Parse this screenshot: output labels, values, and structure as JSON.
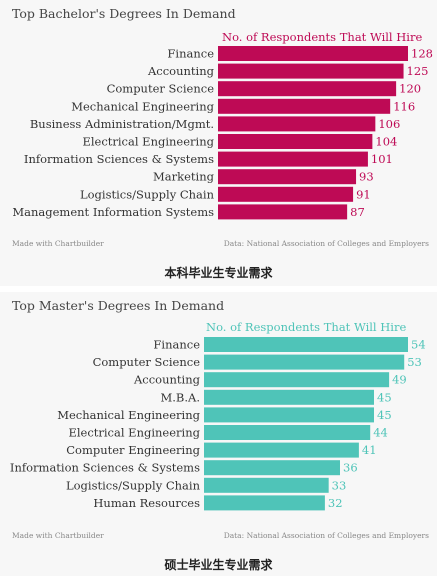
{
  "chart_data": [
    {
      "type": "bar",
      "orientation": "horizontal",
      "title": "Top Bachelor's Degrees In Demand",
      "legend": "No. of Respondents That Will Hire",
      "categories": [
        "Finance",
        "Accounting",
        "Computer Science",
        "Mechanical Engineering",
        "Business Administration/Mgmt.",
        "Electrical Engineering",
        "Information Sciences & Systems",
        "Marketing",
        "Logistics/Supply Chain",
        "Management Information Systems"
      ],
      "values": [
        128,
        125,
        120,
        116,
        106,
        104,
        101,
        93,
        91,
        87
      ],
      "color": "#be0a55",
      "footer_left": "Made with Chartbuilder",
      "footer_right": "Data: National Association of Colleges and Employers",
      "caption": "本科毕业生专业需求"
    },
    {
      "type": "bar",
      "orientation": "horizontal",
      "title": "Top Master's Degrees In Demand",
      "legend": "No. of Respondents That Will Hire",
      "categories": [
        "Finance",
        "Computer Science",
        "Accounting",
        "M.B.A.",
        "Mechanical Engineering",
        "Electrical Engineering",
        "Computer Engineering",
        "Information Sciences & Systems",
        "Logistics/Supply Chain",
        "Human Resources"
      ],
      "values": [
        54,
        53,
        49,
        45,
        45,
        44,
        41,
        36,
        33,
        32
      ],
      "color": "#4fc4b8",
      "footer_left": "Made with Chartbuilder",
      "footer_right": "Data: National Association of Colleges and Employers",
      "caption": "硕士毕业生专业需求"
    }
  ]
}
